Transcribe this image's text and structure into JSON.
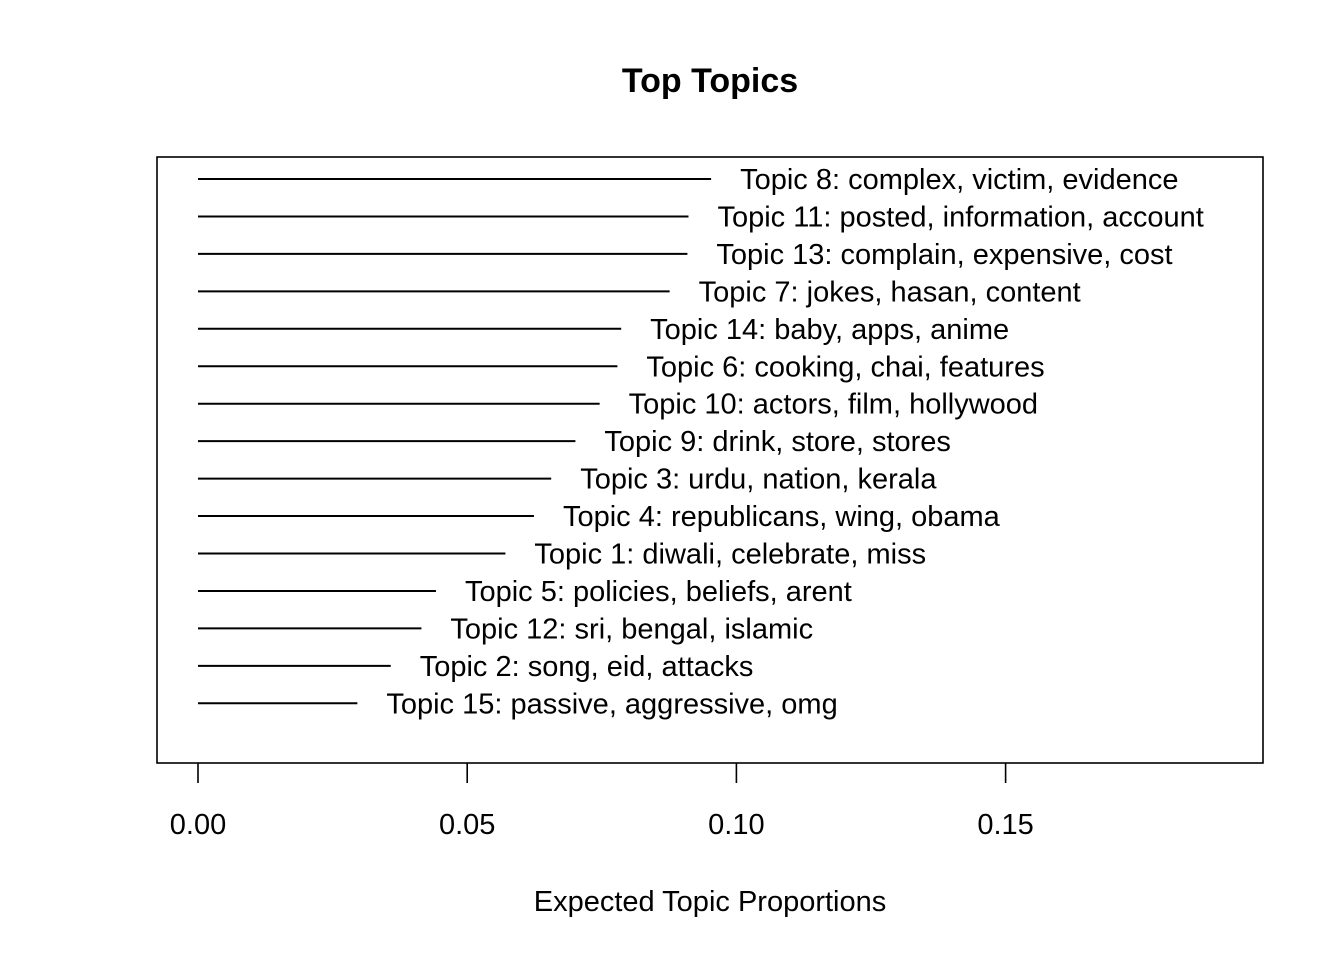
{
  "chart_data": {
    "type": "bar",
    "orientation": "horizontal",
    "title": "Top Topics",
    "xlabel": "Expected Topic Proportions",
    "ylabel": "",
    "xlim": [
      0,
      0.197
    ],
    "xticks": [
      "0.00",
      "0.05",
      "0.10",
      "0.15"
    ],
    "grid": false,
    "legend": "none",
    "bars": [
      {
        "label": "Topic 8: complex, victim, evidence",
        "value": 0.0953
      },
      {
        "label": "Topic 11: posted, information, account",
        "value": 0.0911
      },
      {
        "label": "Topic 13: complain, expensive, cost",
        "value": 0.0909
      },
      {
        "label": "Topic 7: jokes, hasan, content",
        "value": 0.0876
      },
      {
        "label": "Topic 14: baby, apps, anime",
        "value": 0.0786
      },
      {
        "label": "Topic 6: cooking, chai, features",
        "value": 0.0779
      },
      {
        "label": "Topic 10: actors, film, hollywood",
        "value": 0.0746
      },
      {
        "label": "Topic 9: drink, store, stores",
        "value": 0.0701
      },
      {
        "label": "Topic 3: urdu, nation, kerala",
        "value": 0.0656
      },
      {
        "label": "Topic 4: republicans, wing, obama",
        "value": 0.0624
      },
      {
        "label": "Topic 1: diwali, celebrate, miss",
        "value": 0.0571
      },
      {
        "label": "Topic 5: policies, beliefs, arent",
        "value": 0.0442
      },
      {
        "label": "Topic 12: sri, bengal, islamic",
        "value": 0.0415
      },
      {
        "label": "Topic 2: song, eid, attacks",
        "value": 0.0358
      },
      {
        "label": "Topic 15: passive, aggressive, omg",
        "value": 0.0296
      }
    ]
  }
}
